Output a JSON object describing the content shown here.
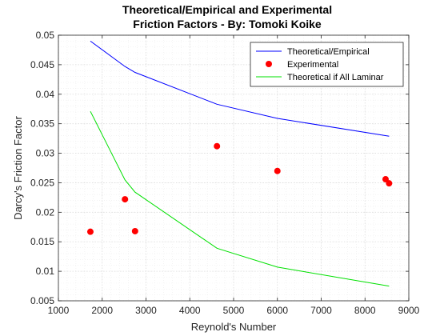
{
  "chart_data": {
    "type": "line",
    "title": [
      "Theoretical/Empirical and Experimental",
      "Friction Factors - By: Tomoki Koike"
    ],
    "xlabel": "Reynold's Number",
    "ylabel": "Darcy's Friction Factor",
    "xlim": [
      1000,
      9000
    ],
    "ylim": [
      0.005,
      0.05
    ],
    "xticks": [
      1000,
      2000,
      3000,
      4000,
      5000,
      6000,
      7000,
      8000,
      9000
    ],
    "yticks": [
      0.005,
      0.01,
      0.015,
      0.02,
      0.025,
      0.03,
      0.035,
      0.04,
      0.045,
      0.05
    ],
    "xtick_labels": [
      "1000",
      "2000",
      "3000",
      "4000",
      "5000",
      "6000",
      "7000",
      "8000",
      "9000"
    ],
    "ytick_labels": [
      "0.005",
      "0.01",
      "0.015",
      "0.02",
      "0.025",
      "0.03",
      "0.035",
      "0.04",
      "0.045",
      "0.05"
    ],
    "grid": true,
    "minor_grid": true,
    "legend_position": "top-right",
    "series": [
      {
        "name": "Theoretical/Empirical",
        "style": "line",
        "color": "#0000ff",
        "x": [
          1730,
          2520,
          2750,
          4620,
          6000,
          8550
        ],
        "y": [
          0.049,
          0.0447,
          0.0437,
          0.0383,
          0.0359,
          0.0329
        ]
      },
      {
        "name": "Experimental",
        "style": "marker",
        "color": "#ff0000",
        "x": [
          1730,
          2520,
          2750,
          4620,
          6000,
          8470,
          8550
        ],
        "y": [
          0.0167,
          0.0222,
          0.0168,
          0.0312,
          0.027,
          0.0256,
          0.0249
        ]
      },
      {
        "name": "Theoretical if All Laminar",
        "style": "line",
        "color": "#00e000",
        "x": [
          1730,
          2520,
          2750,
          4620,
          6000,
          8550
        ],
        "y": [
          0.0371,
          0.0255,
          0.0234,
          0.0139,
          0.0107,
          0.0075
        ]
      }
    ]
  }
}
